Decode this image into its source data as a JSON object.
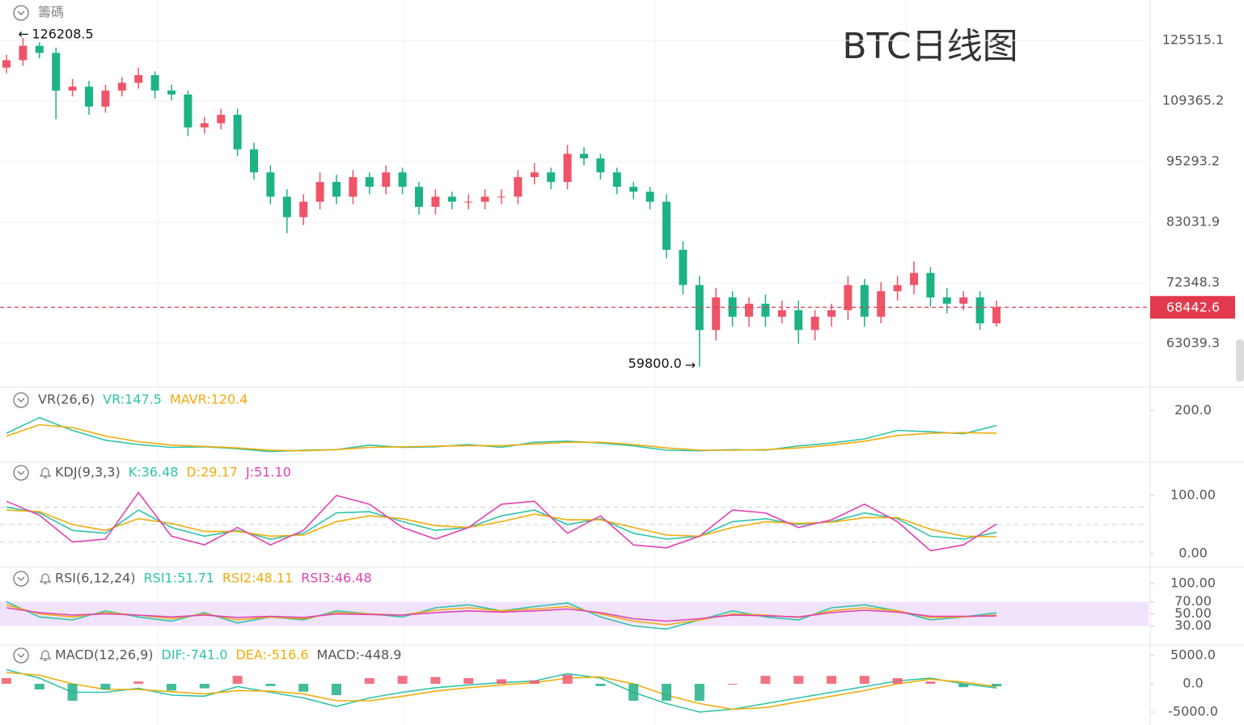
{
  "chart_data": [
    {
      "type": "candlestick",
      "title": "BTC日线图",
      "title_color": "#7b16ee",
      "toggle_label": "籌碼",
      "log_scale": true,
      "grid": true,
      "up_color": "#ef5468",
      "down_color": "#1cb386",
      "last_line_color": "#e23a4c",
      "high_label": "126208.5",
      "low_label": "59800.0",
      "open": [
        118000,
        120000,
        124000,
        122000,
        112000,
        113000,
        108000,
        112000,
        114000,
        116000,
        112000,
        111000,
        103000,
        104000,
        106000,
        98000,
        93000,
        88000,
        84000,
        87000,
        91000,
        88000,
        92000,
        90000,
        93000,
        90000,
        86000,
        88000,
        87000,
        87000,
        88000,
        88000,
        92000,
        93000,
        91000,
        97000,
        96000,
        93000,
        90000,
        89000,
        87000,
        78000,
        72000,
        65000,
        70000,
        67000,
        69000,
        67000,
        68000,
        65000,
        67000,
        68000,
        72000,
        67000,
        71000,
        72000,
        74000,
        70000,
        69000,
        70000,
        66000
      ],
      "high": [
        121500,
        126208.5,
        125000,
        123500,
        115000,
        114500,
        113500,
        115500,
        118000,
        117000,
        113500,
        112000,
        105500,
        107500,
        107500,
        99500,
        94500,
        89500,
        88500,
        93000,
        92500,
        93500,
        93000,
        94500,
        94000,
        91000,
        89500,
        89000,
        88500,
        89500,
        89500,
        93500,
        95000,
        94000,
        99000,
        98500,
        97000,
        94000,
        91000,
        90000,
        88500,
        79500,
        73500,
        71500,
        71000,
        70000,
        70500,
        69500,
        69500,
        68000,
        69000,
        73500,
        73000,
        72500,
        73500,
        76000,
        75000,
        71500,
        71000,
        71000,
        69500
      ],
      "low": [
        116500,
        118500,
        120500,
        105000,
        110500,
        106000,
        106500,
        110500,
        112500,
        110000,
        109500,
        101000,
        101500,
        102500,
        96500,
        91500,
        86500,
        81000,
        82500,
        85500,
        86500,
        86500,
        88500,
        88500,
        88500,
        84500,
        84500,
        85500,
        85500,
        85500,
        86500,
        86500,
        90500,
        89500,
        89500,
        94500,
        91500,
        88500,
        87500,
        85500,
        76500,
        70500,
        59800,
        63500,
        65500,
        65500,
        65500,
        66000,
        63000,
        63500,
        65500,
        66500,
        65500,
        66000,
        69500,
        70500,
        68500,
        67500,
        68000,
        65000,
        65500
      ],
      "close": [
        120000,
        124000,
        122000,
        112000,
        113000,
        108000,
        112000,
        114000,
        116000,
        112000,
        111000,
        103000,
        104000,
        106000,
        98000,
        93000,
        88000,
        84000,
        87000,
        91000,
        88000,
        92000,
        90000,
        93000,
        90000,
        86000,
        88000,
        87000,
        87000,
        88000,
        88000,
        92000,
        93000,
        91000,
        97000,
        96000,
        93000,
        90000,
        89000,
        87000,
        78000,
        72000,
        65000,
        70000,
        67000,
        69000,
        67000,
        68000,
        65000,
        67000,
        68000,
        72000,
        67000,
        71000,
        72000,
        74000,
        70000,
        69000,
        70000,
        66000,
        68442.6
      ],
      "ylim": [
        57194,
        137590
      ],
      "yticks": [
        125515.1,
        109365.2,
        95293.2,
        83031.9,
        72348.3,
        63039.3
      ]
    },
    {
      "type": "line",
      "title": "VR(26,6)",
      "ylim": [
        0,
        265.7
      ],
      "yticks": [
        {
          "value": 200,
          "label": "200.0"
        }
      ],
      "series": [
        {
          "name": "VR:147.5",
          "color": "#2ec4a9",
          "values": [
            120,
            175,
            130,
            95,
            80,
            70,
            72,
            65,
            55,
            60,
            62,
            78,
            70,
            72,
            80,
            70,
            88,
            92,
            85,
            75,
            60,
            58,
            62,
            60,
            75,
            85,
            100,
            130,
            125,
            118,
            147.5
          ]
        },
        {
          "name": "MAVR:120.4",
          "color": "#f0ac0a",
          "values": [
            110,
            150,
            140,
            110,
            90,
            78,
            73,
            68,
            60,
            58,
            62,
            70,
            72,
            74,
            76,
            76,
            82,
            88,
            88,
            80,
            68,
            60,
            60,
            62,
            68,
            78,
            92,
            112,
            120,
            122,
            120.4
          ]
        }
      ]
    },
    {
      "type": "line",
      "title": "KDJ(9,3,3)",
      "alert": true,
      "ylim": [
        -20.8,
        131.9
      ],
      "yticks": [
        {
          "value": 100,
          "label": "100.00"
        },
        {
          "value": 0,
          "label": "0.00"
        }
      ],
      "reference_lines": [
        80,
        50,
        20
      ],
      "series": [
        {
          "name": "K:36.48",
          "color": "#2ec4a9",
          "values": [
            80,
            70,
            40,
            35,
            75,
            45,
            30,
            40,
            25,
            35,
            70,
            72,
            55,
            40,
            45,
            65,
            75,
            50,
            60,
            35,
            25,
            30,
            55,
            60,
            50,
            55,
            70,
            60,
            30,
            25,
            36.48
          ]
        },
        {
          "name": "D:29.17",
          "color": "#f0ac0a",
          "values": [
            75,
            72,
            50,
            40,
            60,
            52,
            38,
            38,
            30,
            32,
            55,
            65,
            60,
            48,
            45,
            55,
            68,
            58,
            58,
            45,
            32,
            30,
            45,
            55,
            52,
            54,
            62,
            62,
            42,
            30,
            29.17
          ]
        },
        {
          "name": "J:51.10",
          "color": "#e042b4",
          "values": [
            90,
            66,
            20,
            25,
            105,
            30,
            15,
            45,
            15,
            40,
            100,
            85,
            45,
            25,
            45,
            85,
            90,
            35,
            65,
            15,
            10,
            30,
            75,
            70,
            45,
            58,
            85,
            55,
            5,
            15,
            51.1
          ]
        }
      ]
    },
    {
      "type": "line",
      "title": "RSI(6,12,24)",
      "alert": true,
      "ylim": [
        0,
        122.7
      ],
      "band": [
        30,
        70
      ],
      "band_color": "#f1e3fb",
      "yticks": [
        {
          "value": 100,
          "label": "100.00"
        },
        {
          "value": 70,
          "label": "70.00"
        },
        {
          "value": 50,
          "label": "50.00"
        },
        {
          "value": 30,
          "label": "30.00"
        }
      ],
      "series": [
        {
          "name": "RSI1:51.71",
          "color": "#2ec4a9",
          "values": [
            70,
            45,
            40,
            55,
            45,
            38,
            52,
            35,
            45,
            40,
            55,
            50,
            45,
            60,
            65,
            55,
            62,
            68,
            45,
            30,
            25,
            40,
            55,
            45,
            40,
            60,
            65,
            55,
            40,
            45,
            51.71
          ]
        },
        {
          "name": "RSI2:48.11",
          "color": "#f0ac0a",
          "values": [
            65,
            50,
            45,
            52,
            48,
            42,
            50,
            40,
            45,
            42,
            52,
            50,
            48,
            56,
            60,
            55,
            58,
            62,
            50,
            38,
            32,
            40,
            50,
            48,
            44,
            55,
            60,
            55,
            44,
            45,
            48.11
          ]
        },
        {
          "name": "RSI3:46.48",
          "color": "#e042b4",
          "values": [
            60,
            52,
            48,
            50,
            48,
            45,
            48,
            44,
            46,
            44,
            50,
            49,
            48,
            52,
            55,
            53,
            55,
            58,
            52,
            42,
            38,
            42,
            48,
            47,
            45,
            52,
            56,
            53,
            46,
            46,
            46.48
          ]
        }
      ]
    },
    {
      "type": "line",
      "title": "MACD(12,26,9)",
      "alert": true,
      "ylim": [
        -7286,
        6571
      ],
      "yticks": [
        {
          "value": 5000,
          "label": "5000.0"
        },
        {
          "value": 0,
          "label": "0.0"
        },
        {
          "value": -5000,
          "label": "-5000.0"
        }
      ],
      "series": [
        {
          "name": "DIF:-741.0",
          "color": "#2ec4a9",
          "values": [
            2500,
            1000,
            -1500,
            -1500,
            -800,
            -2000,
            -2200,
            -500,
            -1500,
            -2500,
            -4000,
            -2500,
            -1500,
            -700,
            -200,
            200,
            500,
            1800,
            1000,
            -1500,
            -3500,
            -5000,
            -4500,
            -3500,
            -2500,
            -1500,
            -500,
            500,
            1000,
            0,
            -741
          ]
        },
        {
          "name": "DEA:-516.6",
          "color": "#f0ac0a",
          "values": [
            2000,
            1500,
            0,
            -1000,
            -1000,
            -1400,
            -1800,
            -1200,
            -1300,
            -1800,
            -3000,
            -3000,
            -2200,
            -1300,
            -700,
            -200,
            200,
            1000,
            1200,
            0,
            -2000,
            -3500,
            -4500,
            -4200,
            -3200,
            -2200,
            -1200,
            0,
            800,
            300,
            -516.6
          ]
        },
        {
          "name": "MACD:-448.9",
          "color": "#6b6bd6",
          "kind": "bar",
          "up_color": "#f05a6e",
          "down_color": "#22b08a",
          "values": [
            1000,
            -1000,
            -3000,
            -1000,
            400,
            -1200,
            -800,
            1400,
            -400,
            -1400,
            -2000,
            1000,
            1400,
            1200,
            1000,
            800,
            600,
            1600,
            -400,
            -3000,
            -3000,
            -3000,
            0,
            1400,
            1400,
            1400,
            1400,
            1000,
            400,
            -600,
            -448.9
          ]
        }
      ]
    }
  ]
}
